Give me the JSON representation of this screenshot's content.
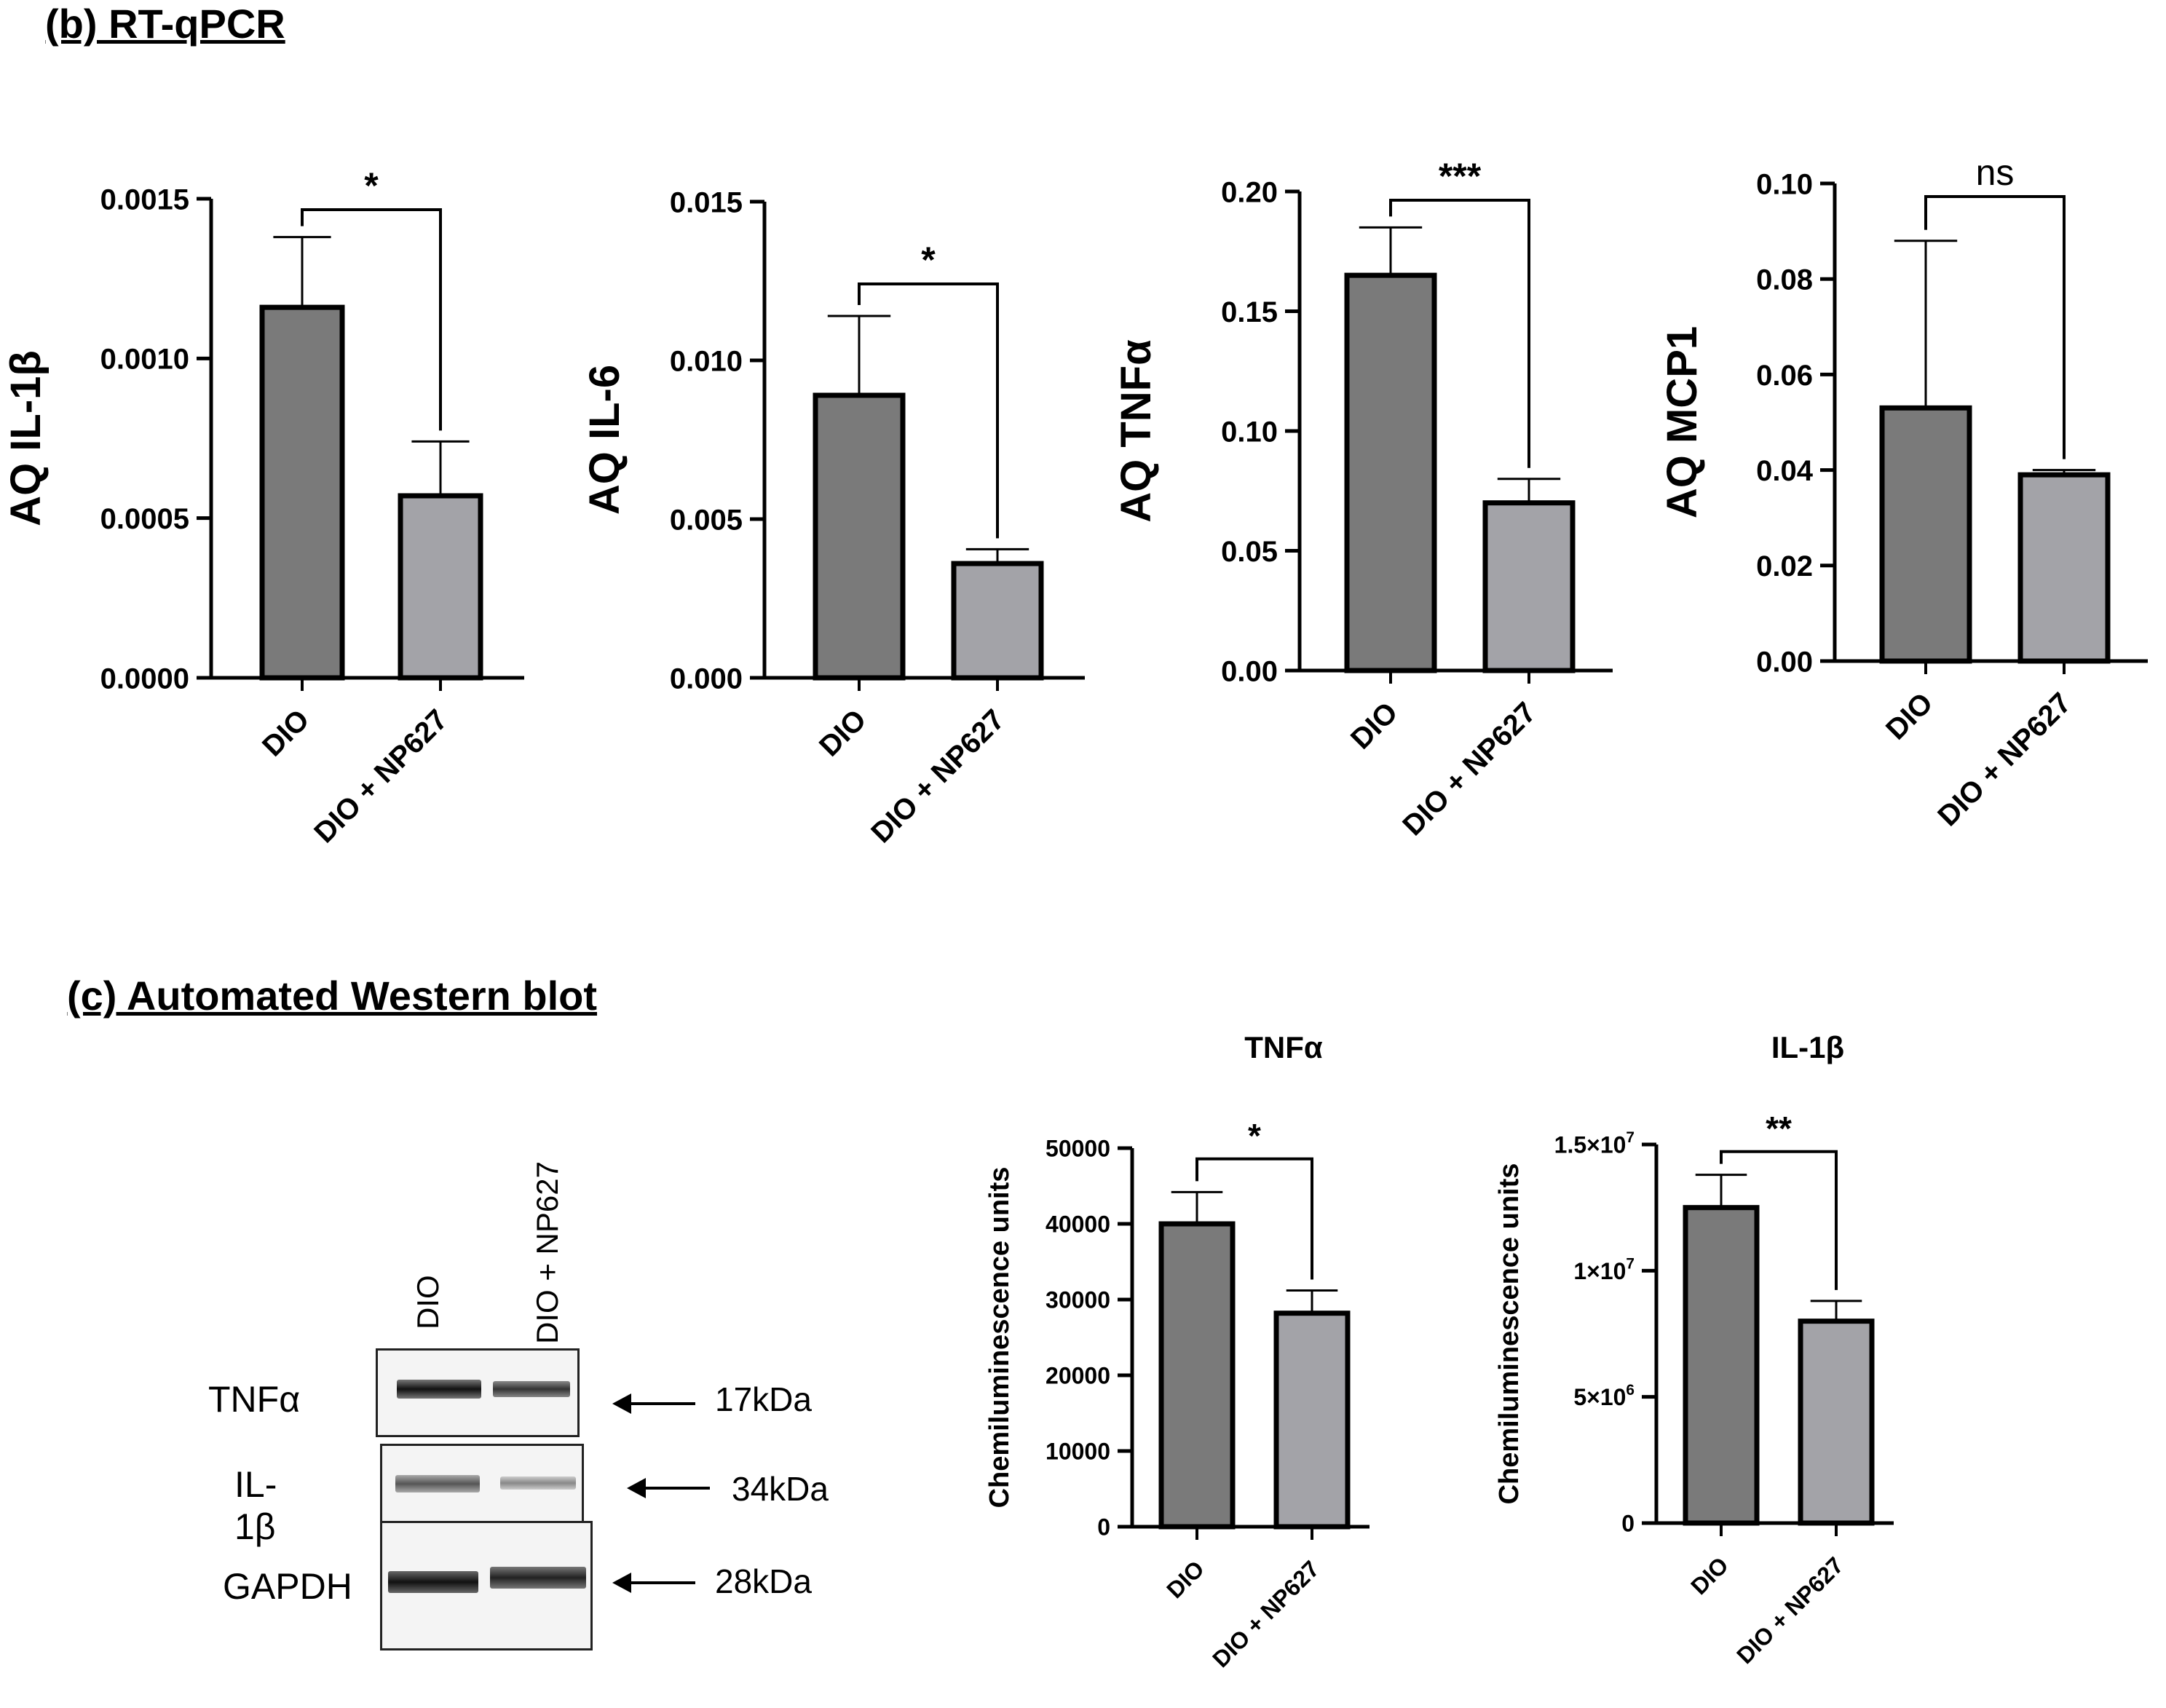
{
  "sections": {
    "b_title": "(b) RT-qPCR",
    "c_title": "(c) Automated Western blot"
  },
  "colors": {
    "dio_bar": "#7a7a7a",
    "np_bar": "#a3a3a8"
  },
  "chart_data": [
    {
      "id": "il1b_qpcr",
      "type": "bar",
      "title": "",
      "ylabel": "AQ IL-1β",
      "xlabel": "",
      "categories": [
        "DIO",
        "DIO + NP627"
      ],
      "values": [
        0.00116,
        0.00057
      ],
      "errors": [
        0.00022,
        0.00017
      ],
      "ylim": [
        0,
        0.0015
      ],
      "yticks": [
        0,
        0.0005,
        0.001,
        0.0015
      ],
      "yticklabels": [
        "0.0000",
        "0.0005",
        "0.0010",
        "0.0015"
      ],
      "significance": "*"
    },
    {
      "id": "il6_qpcr",
      "type": "bar",
      "title": "",
      "ylabel": "AQ IL-6",
      "xlabel": "",
      "categories": [
        "DIO",
        "DIO + NP627"
      ],
      "values": [
        0.0089,
        0.0036
      ],
      "errors": [
        0.0025,
        0.00045
      ],
      "ylim": [
        0,
        0.015
      ],
      "yticks": [
        0,
        0.005,
        0.01,
        0.015
      ],
      "yticklabels": [
        "0.000",
        "0.005",
        "0.010",
        "0.015"
      ],
      "significance": "*"
    },
    {
      "id": "tnfa_qpcr",
      "type": "bar",
      "title": "",
      "ylabel": "AQ TNFα",
      "xlabel": "",
      "categories": [
        "DIO",
        "DIO + NP627"
      ],
      "values": [
        0.165,
        0.07
      ],
      "errors": [
        0.02,
        0.01
      ],
      "ylim": [
        0,
        0.2
      ],
      "yticks": [
        0,
        0.05,
        0.1,
        0.15,
        0.2
      ],
      "yticklabels": [
        "0.00",
        "0.05",
        "0.10",
        "0.15",
        "0.20"
      ],
      "significance": "***"
    },
    {
      "id": "mcp1_qpcr",
      "type": "bar",
      "title": "",
      "ylabel": "AQ MCP1",
      "xlabel": "",
      "categories": [
        "DIO",
        "DIO + NP627"
      ],
      "values": [
        0.053,
        0.039
      ],
      "errors": [
        0.035,
        0.001
      ],
      "ylim": [
        0,
        0.1
      ],
      "yticks": [
        0,
        0.02,
        0.04,
        0.06,
        0.08,
        0.1
      ],
      "yticklabels": [
        "0.00",
        "0.02",
        "0.04",
        "0.06",
        "0.08",
        "0.10"
      ],
      "significance": "ns"
    },
    {
      "id": "tnfa_wb",
      "type": "bar",
      "title": "TNFα",
      "ylabel": "Chemiluminescence units",
      "xlabel": "",
      "categories": [
        "DIO",
        "DIO +  NP627"
      ],
      "values": [
        40000,
        28200
      ],
      "errors": [
        4200,
        3000
      ],
      "ylim": [
        0,
        50000
      ],
      "yticks": [
        0,
        10000,
        20000,
        30000,
        40000,
        50000
      ],
      "yticklabels": [
        "0",
        "10000",
        "20000",
        "30000",
        "40000",
        "50000"
      ],
      "significance": "*"
    },
    {
      "id": "il1b_wb",
      "type": "bar",
      "title": "IL-1β",
      "ylabel": "Chemiluminescence units",
      "xlabel": "",
      "categories": [
        "DIO",
        "DIO +  NP627"
      ],
      "values": [
        12500000,
        8000000
      ],
      "errors": [
        1300000,
        800000
      ],
      "ylim": [
        0,
        15000000
      ],
      "yticks": [
        0,
        5000000,
        10000000,
        15000000
      ],
      "yticklabels": [
        {
          "base": "0",
          "exp": ""
        },
        {
          "base": "5×10",
          "exp": "6"
        },
        {
          "base": "1×10",
          "exp": "7"
        },
        {
          "base": "1.5×10",
          "exp": "7"
        }
      ],
      "significance": "**"
    }
  ],
  "blot": {
    "lanes": [
      "DIO",
      "DIO + NP627"
    ],
    "rows": [
      {
        "protein": "TNFα",
        "kda": "17kDa"
      },
      {
        "protein": "IL-1β",
        "kda": "34kDa"
      },
      {
        "protein": "GAPDH",
        "kda": "28kDa"
      }
    ]
  }
}
